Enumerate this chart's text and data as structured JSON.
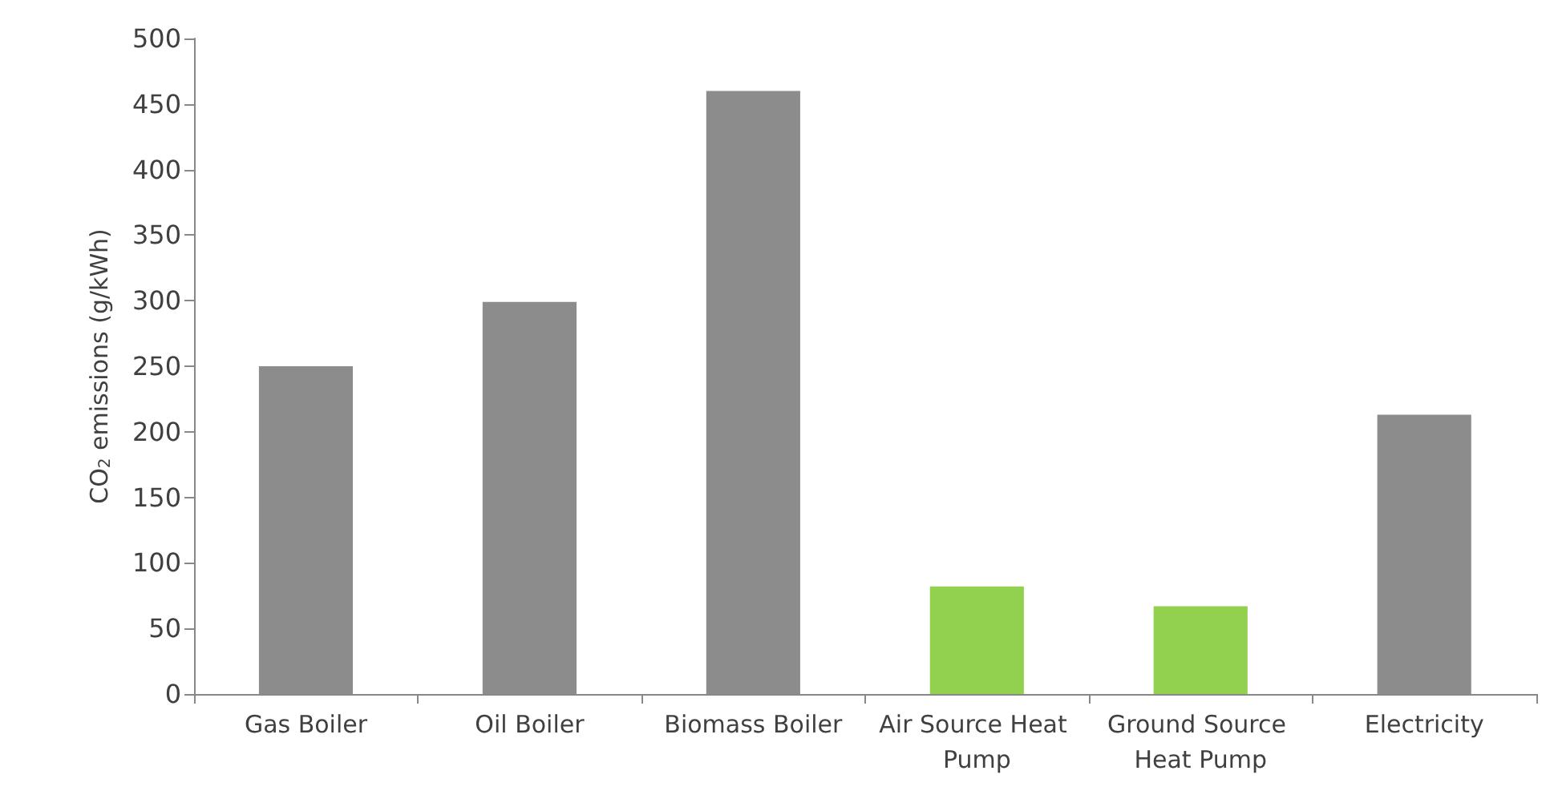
{
  "chart_data": {
    "type": "bar",
    "ylabel": "CO$_{2}$ emissions (g/kWh)",
    "categories": [
      "Gas Boiler",
      "Oil Boiler",
      "Biomass Boiler",
      "Air Source Heat Pump",
      "Ground Source Heat Pump",
      "Electricity"
    ],
    "values": [
      250,
      299,
      460,
      82,
      67,
      213
    ],
    "colors": [
      "#8c8c8c",
      "#8c8c8c",
      "#8c8c8c",
      "#92d050",
      "#92d050",
      "#8c8c8c"
    ],
    "ylim": [
      0,
      500
    ],
    "yticks": [
      0,
      50,
      100,
      150,
      200,
      250,
      300,
      350,
      400,
      450,
      500
    ],
    "grid": false
  }
}
